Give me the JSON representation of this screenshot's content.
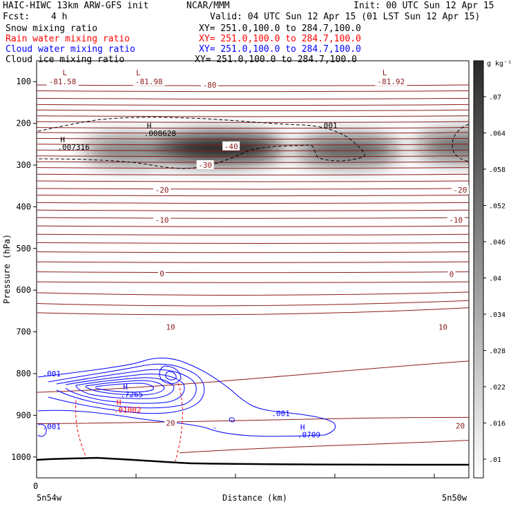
{
  "header": {
    "title_left": "HAIC-HIWC 13km ARW-GFS init",
    "title_center": "NCAR/MMM",
    "init": "Init: 00 UTC Sun 12 Apr 15",
    "fcst_label": "Fcst:",
    "fcst_value": "4 h",
    "valid": "Valid: 04 UTC Sun 12 Apr 15 (01 LST Sun 12 Apr 15)"
  },
  "fields": [
    {
      "name": "Snow mixing ratio",
      "xy": "XY= 251.0,100.0 to 284.7,100.0",
      "color": "#000000"
    },
    {
      "name": "Rain water mixing ratio",
      "xy": "XY= 251.0,100.0 to 284.7,100.0",
      "color": "#ff0000"
    },
    {
      "name": "Cloud water mixing ratio",
      "xy": "XY= 251.0,100.0 to 284.7,100.0",
      "color": "#0000ff"
    },
    {
      "name": "Cloud ice mixing ratio",
      "xy": "XY= 251.0,100.0 to 284.7,100.0",
      "color": "#000000"
    }
  ],
  "colorbar": {
    "unit_label": "g kg⁻¹",
    "ticks": [
      ".07",
      ".064",
      ".058",
      ".052",
      ".046",
      ".04",
      ".034",
      ".028",
      ".022",
      ".016",
      ".01"
    ]
  },
  "chart_data": {
    "type": "heatmap",
    "title": "",
    "ylabel": "Pressure (hPa)",
    "xlabel": "Distance (km)",
    "ylim": [
      1050,
      50
    ],
    "y_ticks": [
      100,
      200,
      300,
      400,
      500,
      600,
      700,
      800,
      900,
      1000
    ],
    "x_tick_label": "0",
    "x_left_label": "5n54w",
    "x_right_label": "5n50w",
    "x_range": [
      0,
      1
    ],
    "snow_shading": [
      {
        "x": 0.42,
        "p": 260,
        "max": 0.07
      },
      {
        "x": 0.72,
        "p": 265,
        "max": 0.045
      },
      {
        "x": 0.21,
        "p": 265,
        "max": 0.03
      },
      {
        "x": 0.99,
        "p": 255,
        "max": 0.04
      }
    ],
    "temperature_labels": [
      {
        "text": "-81.58",
        "x": 0.06,
        "p": 100
      },
      {
        "text": "-81.98",
        "x": 0.26,
        "p": 100
      },
      {
        "text": "-81.92",
        "x": 0.82,
        "p": 100
      },
      {
        "text": "-80",
        "x": 0.4,
        "p": 108
      },
      {
        "text": "-40",
        "x": 0.45,
        "p": 255
      },
      {
        "text": "-30",
        "x": 0.39,
        "p": 300
      },
      {
        "text": "-20",
        "x": 0.29,
        "p": 360
      },
      {
        "text": "-20",
        "x": 0.98,
        "p": 360
      },
      {
        "text": "-10",
        "x": 0.29,
        "p": 432
      },
      {
        "text": "-10",
        "x": 0.97,
        "p": 432
      },
      {
        "text": "0",
        "x": 0.29,
        "p": 560
      },
      {
        "text": "0",
        "x": 0.96,
        "p": 562
      },
      {
        "text": "10",
        "x": 0.31,
        "p": 688
      },
      {
        "text": "10",
        "x": 0.94,
        "p": 688
      },
      {
        "text": "20",
        "x": 0.31,
        "p": 918
      },
      {
        "text": "20",
        "x": 0.98,
        "p": 925
      }
    ],
    "max_labels": [
      {
        "mark": "L",
        "value": "",
        "x": 0.06,
        "p": 85,
        "color": "#8b1a1a"
      },
      {
        "mark": "L",
        "value": "",
        "x": 0.23,
        "p": 85,
        "color": "#8b1a1a"
      },
      {
        "mark": "L",
        "value": "",
        "x": 0.8,
        "p": 85,
        "color": "#8b1a1a"
      },
      {
        "mark": "H",
        "value": ".008628",
        "x": 0.255,
        "p": 212,
        "color": "#000000"
      },
      {
        "mark": "H",
        "value": ".007316",
        "x": 0.055,
        "p": 245,
        "color": "#000000"
      },
      {
        "mark": "",
        "value": ".001",
        "x": 0.66,
        "p": 205,
        "color": "#000000"
      },
      {
        "mark": "",
        "value": ".001",
        "x": 0.02,
        "p": 800,
        "color": "#0000ff"
      },
      {
        "mark": "H",
        "value": ".7265",
        "x": 0.2,
        "p": 838,
        "color": "#0000ff"
      },
      {
        "mark": "H",
        "value": ".01002",
        "x": 0.185,
        "p": 875,
        "color": "#ff0000"
      },
      {
        "mark": "",
        "value": ".001",
        "x": 0.55,
        "p": 895,
        "color": "#0000ff"
      },
      {
        "mark": "",
        "value": ".001",
        "x": 0.02,
        "p": 927,
        "color": "#0000ff"
      },
      {
        "mark": "H",
        "value": ".0709",
        "x": 0.61,
        "p": 935,
        "color": "#0000ff"
      }
    ]
  }
}
